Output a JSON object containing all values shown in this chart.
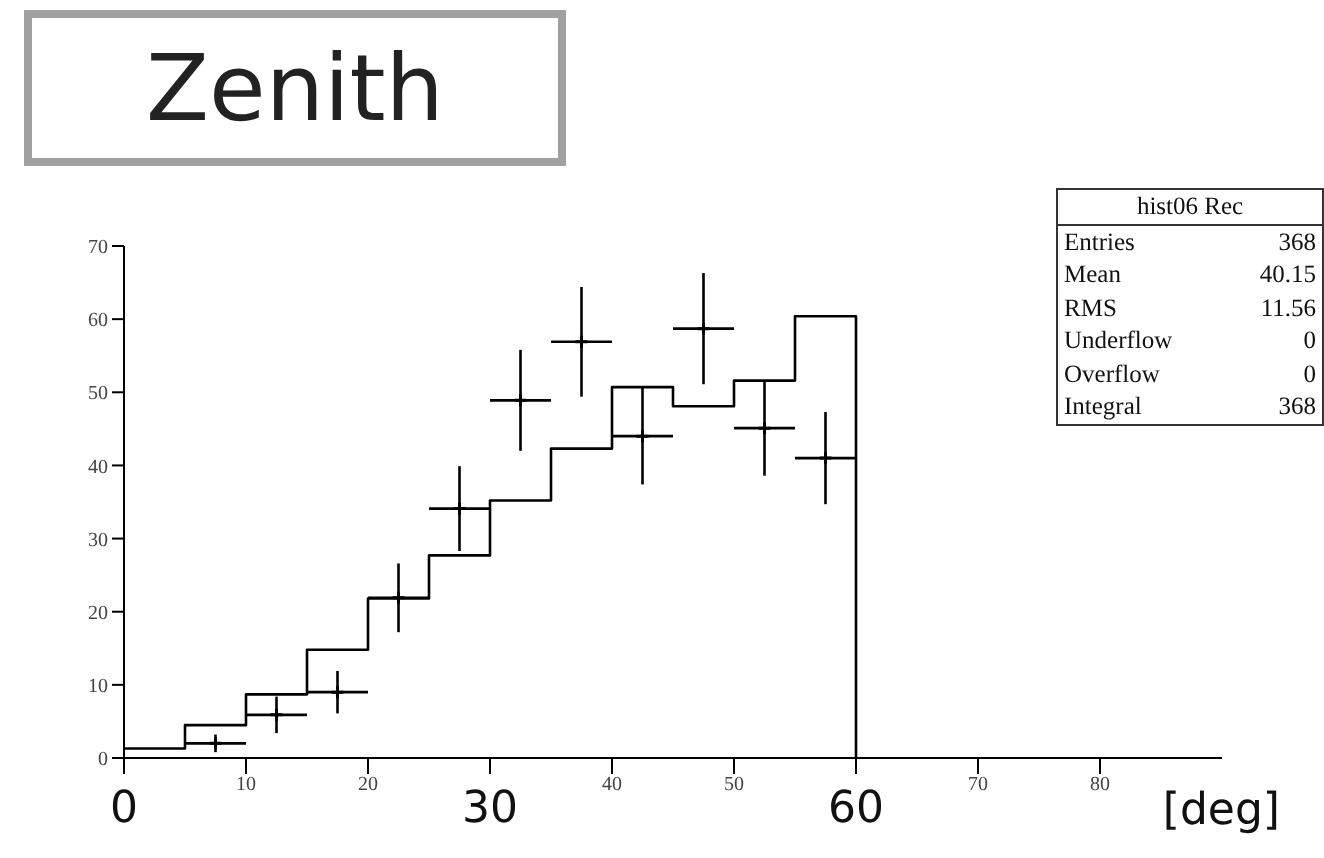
{
  "chart_data": {
    "type": "histogram",
    "title": "Zenith",
    "xlabel": "[deg]",
    "xlim": [
      0,
      90
    ],
    "xticks": [
      {
        "value": 0,
        "label": null
      },
      10,
      20,
      {
        "value": 30,
        "label": null
      },
      40,
      50,
      {
        "value": 60,
        "label": null
      },
      70,
      80
    ],
    "x2lim": [
      0,
      90
    ],
    "x2ticks": [
      0,
      30,
      60
    ],
    "ylim": [
      0,
      70
    ],
    "yticks": [
      0,
      10,
      20,
      30,
      40,
      50,
      60,
      70
    ],
    "grid": false,
    "legend": false,
    "marker": "cross",
    "series": [
      {
        "color": "#000000",
        "bins": [
          0,
          5,
          10,
          15,
          20,
          25,
          30,
          35,
          40,
          45,
          50,
          55,
          60
        ],
        "values": [
          1.3,
          4.5,
          8.7,
          14.8,
          21.8,
          27.7,
          35.2,
          42.3,
          50.7,
          48.1,
          51.6,
          60.4
        ]
      },
      {
        "type": "scatter",
        "color": "#000000",
        "x": [
          7.5,
          12.5,
          17.5,
          22.5,
          27.5,
          32.5,
          37.5,
          42.5,
          47.5,
          52.5,
          57.5
        ],
        "values": [
          2.0,
          5.9,
          9.0,
          21.9,
          34.1,
          48.9,
          56.9,
          44.0,
          58.7,
          45.1,
          41.0
        ],
        "errors": [
          1.2,
          2.5,
          2.9,
          4.7,
          5.8,
          6.9,
          7.5,
          6.6,
          7.6,
          6.5,
          6.3
        ],
        "xerrors": [
          2.5,
          2.5,
          2.5,
          2.5,
          2.5,
          2.5,
          2.5,
          2.5,
          2.5,
          2.5,
          2.5
        ]
      }
    ],
    "annotations": [
      "hist06 Rec",
      "Entries",
      "368",
      "Mean",
      "40.15",
      "RMS",
      "11.56",
      "Underflow",
      "0",
      "Overflow",
      "0",
      "Integral",
      "368"
    ]
  }
}
